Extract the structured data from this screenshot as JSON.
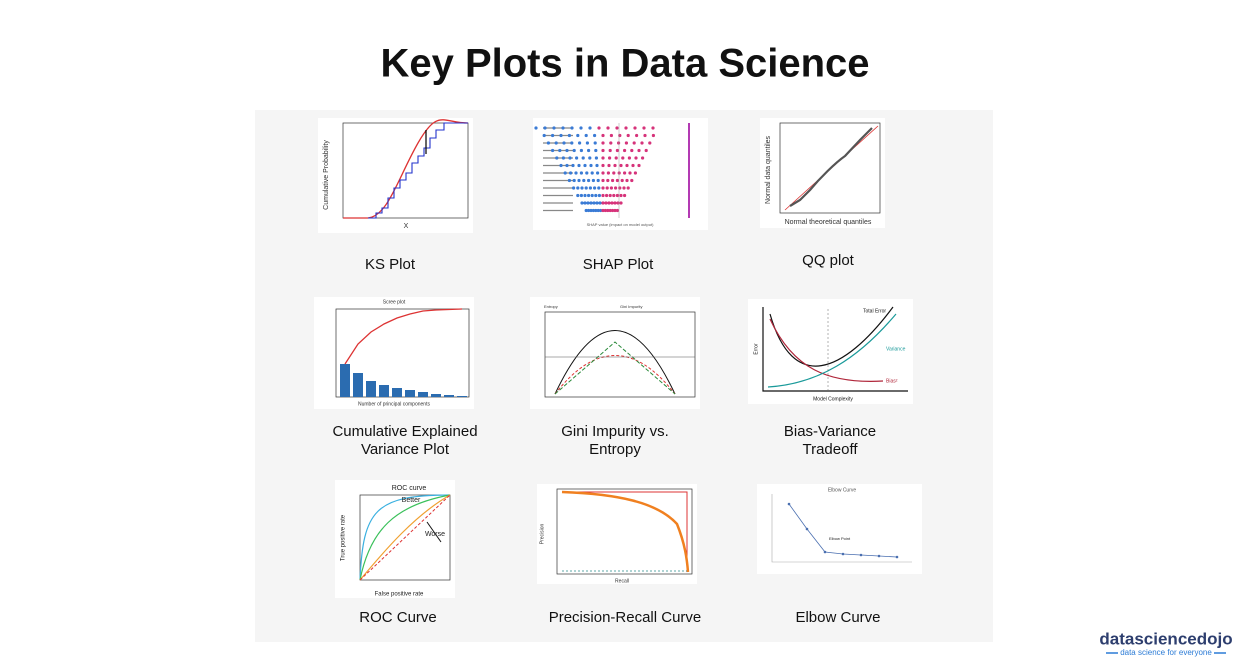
{
  "title": "Key Plots in Data Science",
  "panels": [
    {
      "caption": [
        "KS Plot"
      ],
      "labels": [
        "Cumulative Probability",
        "X"
      ]
    },
    {
      "caption": [
        "SHAP Plot"
      ],
      "labels": [
        "SHAP value (impact on model output)"
      ]
    },
    {
      "caption": [
        "QQ plot"
      ],
      "labels": [
        "Normal data quantiles",
        "Normal theoretical quantiles"
      ]
    },
    {
      "caption": [
        "Cumulative Explained",
        "Variance Plot"
      ],
      "labels": [
        "Scree plot",
        "Number of principal components"
      ]
    },
    {
      "caption": [
        "Gini Impurity vs.",
        "Entropy"
      ],
      "labels": [
        "Entropy",
        "Gini Impurity"
      ]
    },
    {
      "caption": [
        "Bias-Variance",
        "Tradeoff"
      ],
      "labels": [
        "Total Error",
        "Variance",
        "Bias²",
        "Model Complexity",
        "Error"
      ]
    },
    {
      "caption": [
        "ROC Curve"
      ],
      "labels": [
        "ROC curve",
        "Better",
        "Worse",
        "True positive rate",
        "False positive rate"
      ]
    },
    {
      "caption": [
        "Precision-Recall Curve"
      ],
      "labels": [
        "Precision",
        "Recall"
      ]
    },
    {
      "caption": [
        "Elbow Curve"
      ],
      "labels": [
        "Elbow Curve",
        "Elbow Point"
      ]
    }
  ],
  "logo": {
    "name": "datasciencedojo",
    "tagline": "data science for everyone"
  }
}
